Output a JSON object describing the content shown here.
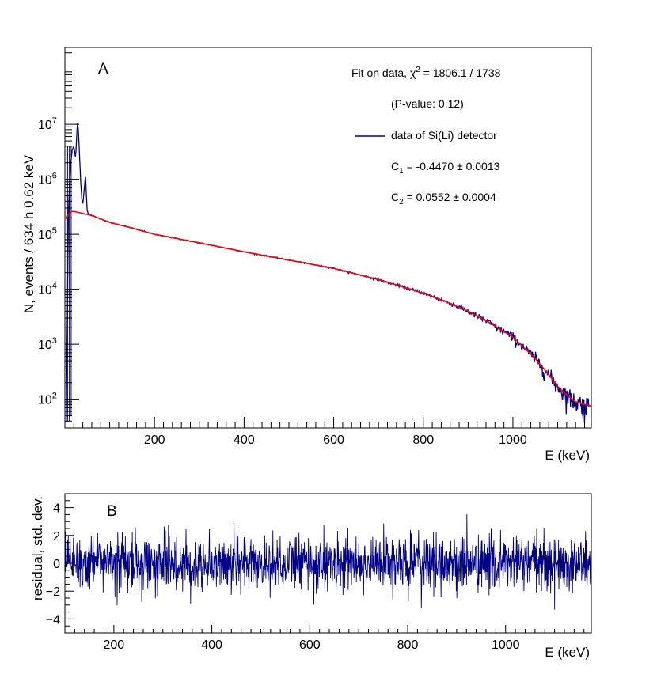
{
  "colors": {
    "data": "#00008b",
    "fit": "#ff0000",
    "frame": "#000000"
  },
  "panel_a": {
    "label": "A",
    "ylabel": "N, events / 634 h 0.62 keV",
    "xlabel": "E (keV)",
    "legend": {
      "fit_prefix": "Fit on data, ",
      "chi_symbol": "χ",
      "chi_sup": "2",
      "chi_value": " = 1806.1 / 1738",
      "pvalue": "(P-value: 0.12)",
      "data_entry": "data of Si(Li) detector",
      "c1_letter": "C",
      "c1_sub": "1",
      "c1_value": " = -0.4470 ± 0.0013",
      "c2_letter": "C",
      "c2_sub": "2",
      "c2_value": " = 0.0552 ± 0.0004"
    }
  },
  "panel_b": {
    "label": "B",
    "ylabel": "residual, std. dev.",
    "xlabel": "E (keV)"
  },
  "chart_data": [
    {
      "type": "line",
      "scale_y": "log",
      "xlim": [
        0,
        1175
      ],
      "ylim": [
        30,
        250000000
      ],
      "x_ticks": [
        200,
        400,
        600,
        800,
        1000
      ],
      "x_tick_labels": [
        "200",
        "400",
        "600",
        "800",
        "1000"
      ],
      "y_ticks": [
        100,
        1000,
        10000,
        100000,
        1000000,
        10000000
      ],
      "y_tick_base": "10",
      "y_tick_exps": [
        "2",
        "3",
        "4",
        "5",
        "6",
        "7"
      ],
      "series": [
        {
          "name": "data of Si(Li) detector",
          "x": [
            3,
            8,
            12,
            16,
            20,
            24,
            28,
            30,
            32,
            36,
            38,
            40,
            44,
            46,
            50,
            60,
            80,
            100,
            150,
            200,
            300,
            400,
            500,
            600,
            700,
            800,
            850,
            900,
            950,
            1000,
            1050,
            1080,
            1100,
            1120,
            1140,
            1160,
            1170
          ],
          "y": [
            40,
            300000,
            1500000,
            3500000,
            4000000,
            2500000,
            11000000,
            8000000,
            3500000,
            700000,
            400000,
            350000,
            800000,
            1200000,
            250000,
            220000,
            190000,
            165000,
            130000,
            100000,
            70000,
            48000,
            34000,
            24000,
            15000,
            8500,
            6000,
            4000,
            2400,
            1350,
            550,
            280,
            170,
            120,
            90,
            80,
            75
          ]
        },
        {
          "x": [
            3,
            8,
            15,
            20,
            25,
            30,
            40,
            60,
            80,
            100,
            150,
            200,
            300,
            400,
            500,
            600,
            700,
            800,
            850,
            900,
            950,
            1000,
            1050,
            1080,
            1100,
            1120,
            1140,
            1160,
            1175
          ],
          "y": [
            190000,
            230000,
            260000,
            260000,
            255000,
            250000,
            240000,
            220000,
            190000,
            165000,
            130000,
            100000,
            70000,
            48000,
            34000,
            24000,
            15000,
            8500,
            6000,
            4000,
            2400,
            1350,
            550,
            280,
            170,
            120,
            90,
            80,
            75
          ]
        }
      ]
    },
    {
      "type": "line",
      "xlim": [
        100,
        1175
      ],
      "ylim": [
        -5,
        5
      ],
      "x_ticks": [
        200,
        400,
        600,
        800,
        1000
      ],
      "x_tick_labels": [
        "200",
        "400",
        "600",
        "800",
        "1000"
      ],
      "y_ticks": [
        -4,
        -2,
        0,
        2,
        4
      ],
      "y_tick_labels": [
        "−4",
        "−2",
        "0",
        "2",
        "4"
      ],
      "series": [
        {
          "x": [
            100,
            1175
          ],
          "y_range": [
            -4.5,
            4.2
          ],
          "sigma": 1
        }
      ]
    }
  ]
}
